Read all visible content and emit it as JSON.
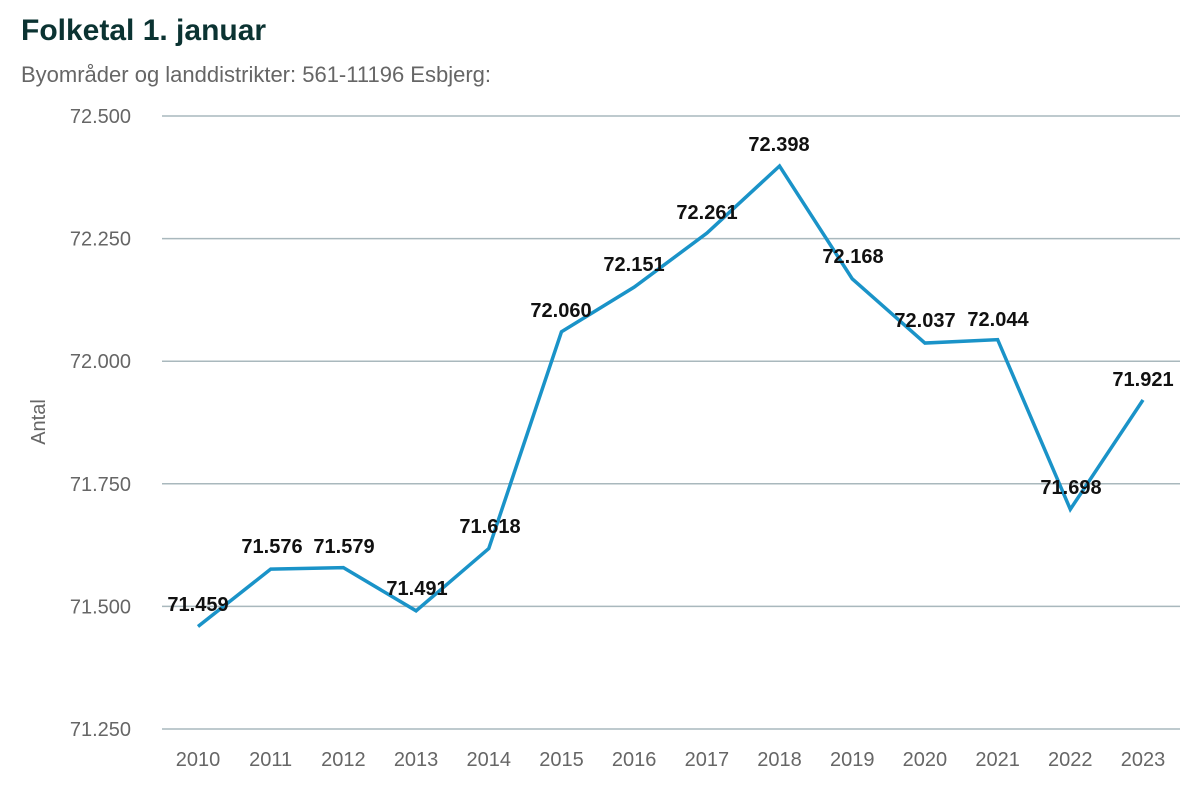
{
  "header": {
    "title": "Folketal 1. januar",
    "subtitle": "Byområder og landdistrikter: 561-11196 Esbjerg:"
  },
  "chart_data": {
    "type": "line",
    "title": "Folketal 1. januar",
    "subtitle": "Byområder og landdistrikter: 561-11196 Esbjerg:",
    "xlabel": "",
    "ylabel": "Antal",
    "categories": [
      "2010",
      "2011",
      "2012",
      "2013",
      "2014",
      "2015",
      "2016",
      "2017",
      "2018",
      "2019",
      "2020",
      "2021",
      "2022",
      "2023"
    ],
    "series": [
      {
        "name": "Antal",
        "color": "#1a93c8",
        "values": [
          71459,
          71576,
          71579,
          71491,
          71618,
          72060,
          72151,
          72261,
          72398,
          72168,
          72037,
          72044,
          71698,
          71921
        ],
        "labels": [
          "71.459",
          "71.576",
          "71.579",
          "71.491",
          "71.618",
          "72.060",
          "72.151",
          "72.261",
          "72.398",
          "72.168",
          "72.037",
          "72.044",
          "71.698",
          "71.921"
        ]
      }
    ],
    "ylim": [
      71250,
      72500
    ],
    "yticks": [
      71250,
      71500,
      71750,
      72000,
      72250,
      72500
    ],
    "ytick_labels": [
      "71.250",
      "71.500",
      "71.750",
      "72.000",
      "72.250",
      "72.500"
    ],
    "grid": true,
    "legend": "none",
    "colors": {
      "line": "#1a93c8",
      "grid": "#a9b8bd",
      "axis_text": "#666666",
      "data_label": "#111111",
      "title": "#0b3332"
    }
  }
}
